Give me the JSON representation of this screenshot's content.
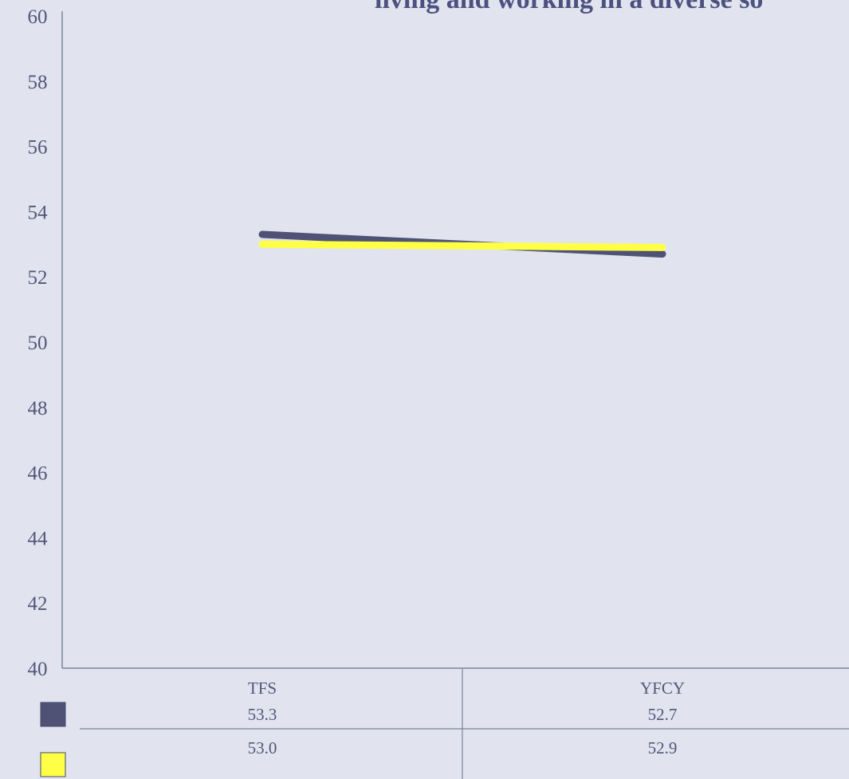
{
  "colors": {
    "background": "#e1e4ee",
    "axis": "#7e81a0",
    "text": "#52567a",
    "title": "#4d5180"
  },
  "chart_data": {
    "type": "line",
    "title": "living and working in a diverse so",
    "xlabel": "",
    "ylabel": "",
    "ylim": [
      40,
      60
    ],
    "y_ticks": [
      "40",
      "42",
      "44",
      "46",
      "48",
      "50",
      "52",
      "54",
      "56",
      "58",
      "60"
    ],
    "categories": [
      "TFS",
      "YFCY"
    ],
    "grid": false,
    "legend": "data-table-below",
    "series": [
      {
        "values": [
          53.3,
          52.7
        ],
        "labels": [
          "53.3",
          "52.7"
        ],
        "color": "#4f5275"
      },
      {
        "values": [
          53.0,
          52.9
        ],
        "labels": [
          "53.0",
          "52.9"
        ],
        "color": "#ffff45"
      }
    ]
  }
}
